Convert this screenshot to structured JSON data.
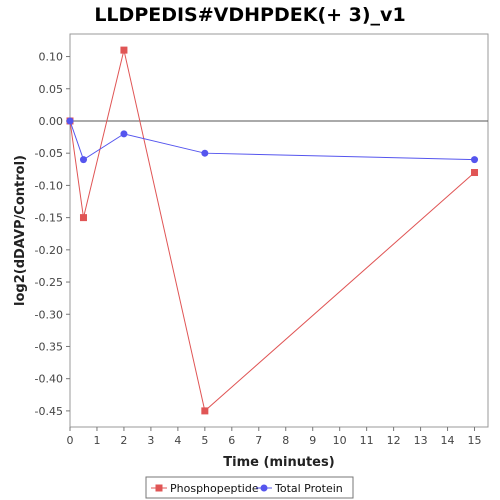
{
  "chart_data": {
    "type": "line",
    "title": "LLDPEDIS#VDHPDEK(+ 3)_v1",
    "xlabel": "Time (minutes)",
    "ylabel": "log2(dDAVP/Control)",
    "xlim": [
      0,
      15.5
    ],
    "ylim": [
      -0.475,
      0.135
    ],
    "x_ticks": [
      0,
      1,
      2,
      3,
      4,
      5,
      6,
      7,
      8,
      9,
      10,
      11,
      12,
      13,
      14,
      15
    ],
    "y_ticks": [
      0.1,
      0.05,
      0.0,
      -0.05,
      -0.1,
      -0.15,
      -0.2,
      -0.25,
      -0.3,
      -0.35,
      -0.4,
      -0.45
    ],
    "y_tick_labels": [
      "0.10",
      "0.05",
      "0.00",
      "-0.05",
      "-0.10",
      "-0.15",
      "-0.20",
      "-0.25",
      "-0.30",
      "-0.35",
      "-0.40",
      "-0.45"
    ],
    "zero_line": true,
    "grid": false,
    "legend_position": "bottom",
    "series": [
      {
        "name": "Phosphopeptide",
        "color": "#e05555",
        "marker": "square",
        "x": [
          0,
          0.5,
          2,
          5,
          15
        ],
        "y": [
          0.0,
          -0.15,
          0.11,
          -0.45,
          -0.08
        ]
      },
      {
        "name": "Total Protein",
        "color": "#5555ee",
        "marker": "circle",
        "x": [
          0,
          0.5,
          2,
          5,
          15
        ],
        "y": [
          0.0,
          -0.06,
          -0.02,
          -0.05,
          -0.06
        ]
      }
    ]
  }
}
